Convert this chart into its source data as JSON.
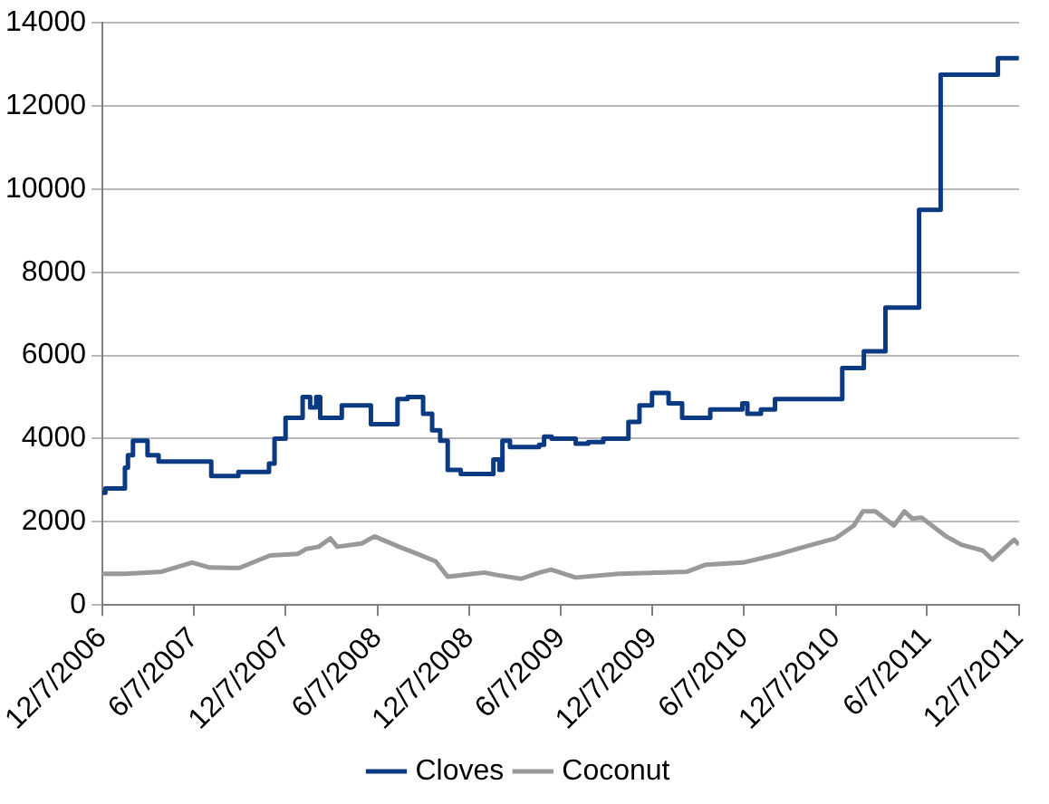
{
  "chart_data": {
    "type": "line",
    "xlim": [
      "2006-12-07",
      "2011-12-07"
    ],
    "xticks": [
      {
        "value": "2006-12-07",
        "label": "12/7/2006"
      },
      {
        "value": "2007-06-07",
        "label": "6/7/2007"
      },
      {
        "value": "2007-12-07",
        "label": "12/7/2007"
      },
      {
        "value": "2008-06-07",
        "label": "6/7/2008"
      },
      {
        "value": "2008-12-07",
        "label": "12/7/2008"
      },
      {
        "value": "2009-06-07",
        "label": "6/7/2009"
      },
      {
        "value": "2009-12-07",
        "label": "12/7/2009"
      },
      {
        "value": "2010-06-07",
        "label": "6/7/2010"
      },
      {
        "value": "2010-12-07",
        "label": "12/7/2010"
      },
      {
        "value": "2011-06-07",
        "label": "6/7/2011"
      },
      {
        "value": "2011-12-07",
        "label": "12/7/2011"
      }
    ],
    "ylim": [
      0,
      14000
    ],
    "yticks": [
      0,
      2000,
      4000,
      6000,
      8000,
      10000,
      12000,
      14000
    ],
    "grid": "y",
    "legend": "bottom",
    "marker": "none",
    "line_style": "solid",
    "series": [
      {
        "name": "Cloves",
        "type": "step",
        "color": "#0b3a82",
        "x": [
          "2006-12-07",
          "2006-12-13",
          "2007-01-21",
          "2007-01-27",
          "2007-02-06",
          "2007-03-07",
          "2007-03-29",
          "2007-07-12",
          "2007-09-04",
          "2007-11-04",
          "2007-11-15",
          "2007-12-07",
          "2008-01-10",
          "2008-01-25",
          "2008-02-06",
          "2008-02-14",
          "2008-03-28",
          "2008-05-25",
          "2008-07-17",
          "2008-08-06",
          "2008-09-06",
          "2008-09-24",
          "2008-10-10",
          "2008-10-25",
          "2008-11-20",
          "2009-01-24",
          "2009-02-05",
          "2009-02-11",
          "2009-02-26",
          "2009-04-25",
          "2009-05-05",
          "2009-05-20",
          "2009-07-07",
          "2009-08-01",
          "2009-08-31",
          "2009-10-20",
          "2009-11-11",
          "2009-12-06",
          "2010-01-08",
          "2010-02-04",
          "2010-04-01",
          "2010-06-04",
          "2010-06-14",
          "2010-07-11",
          "2010-08-08",
          "2010-12-20",
          "2011-02-01",
          "2011-03-16",
          "2011-05-22",
          "2011-07-04",
          "2011-10-26",
          "2011-12-07"
        ],
        "values": [
          2700,
          2800,
          3300,
          3600,
          3950,
          3600,
          3450,
          3100,
          3200,
          3400,
          4000,
          4500,
          5000,
          4750,
          5000,
          4500,
          4800,
          4350,
          4950,
          5000,
          4600,
          4200,
          3950,
          3250,
          3150,
          3500,
          3250,
          3950,
          3800,
          3850,
          4050,
          4000,
          3880,
          3920,
          4000,
          4400,
          4800,
          5100,
          4850,
          4500,
          4700,
          4850,
          4600,
          4700,
          4950,
          5700,
          6100,
          7150,
          9500,
          12750,
          13150,
          13150
        ]
      },
      {
        "name": "Coconut",
        "type": "line",
        "color": "#999999",
        "x": [
          "2006-12-07",
          "2007-01-21",
          "2007-04-04",
          "2007-06-04",
          "2007-07-09",
          "2007-09-06",
          "2007-11-06",
          "2007-12-31",
          "2008-01-18",
          "2008-02-11",
          "2008-03-05",
          "2008-03-19",
          "2008-05-07",
          "2008-06-01",
          "2008-07-20",
          "2008-08-25",
          "2008-10-01",
          "2008-10-25",
          "2009-01-06",
          "2009-01-31",
          "2009-03-20",
          "2009-04-26",
          "2009-05-19",
          "2009-07-07",
          "2009-10-01",
          "2010-02-14",
          "2010-03-23",
          "2010-06-05",
          "2010-08-18",
          "2010-10-06",
          "2010-12-06",
          "2011-01-12",
          "2011-01-30",
          "2011-02-24",
          "2011-04-02",
          "2011-04-23",
          "2011-05-08",
          "2011-05-27",
          "2011-07-15",
          "2011-08-14",
          "2011-09-26",
          "2011-10-15",
          "2011-11-27",
          "2011-12-07"
        ],
        "values": [
          750,
          750,
          800,
          1020,
          900,
          890,
          1190,
          1230,
          1350,
          1400,
          1600,
          1400,
          1480,
          1650,
          1400,
          1230,
          1050,
          680,
          780,
          720,
          630,
          780,
          850,
          660,
          750,
          800,
          970,
          1020,
          1230,
          1400,
          1600,
          1910,
          2250,
          2250,
          1910,
          2250,
          2080,
          2100,
          1650,
          1450,
          1310,
          1090,
          1570,
          1450
        ]
      }
    ]
  }
}
